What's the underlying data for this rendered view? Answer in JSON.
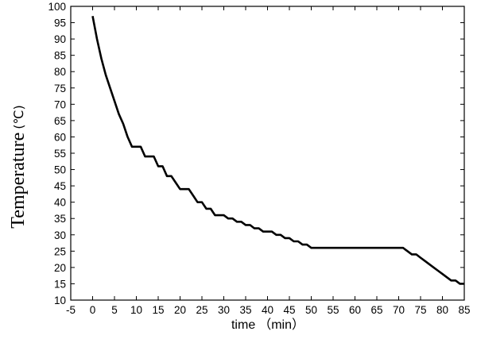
{
  "chart_data": {
    "type": "line",
    "title": "",
    "xlabel": "time",
    "xlabel_unit": "（min）",
    "ylabel": "Temperature",
    "ylabel_unit": "(℃)",
    "xlim": [
      -5,
      85
    ],
    "ylim": [
      10,
      100
    ],
    "xticks": [
      -5,
      0,
      5,
      10,
      15,
      20,
      25,
      30,
      35,
      40,
      45,
      50,
      55,
      60,
      65,
      70,
      75,
      80,
      85
    ],
    "yticks": [
      10,
      15,
      20,
      25,
      30,
      35,
      40,
      45,
      50,
      55,
      60,
      65,
      70,
      75,
      80,
      85,
      90,
      95,
      100
    ],
    "grid": false,
    "legend": "none",
    "series": [
      {
        "color": "#000000",
        "x": [
          0,
          1,
          2,
          3,
          4,
          5,
          6,
          7,
          8,
          9,
          10,
          11,
          12,
          13,
          14,
          15,
          16,
          17,
          18,
          19,
          20,
          21,
          22,
          23,
          24,
          25,
          26,
          27,
          28,
          29,
          30,
          31,
          32,
          33,
          34,
          35,
          36,
          37,
          38,
          39,
          40,
          41,
          42,
          43,
          44,
          45,
          46,
          47,
          48,
          49,
          50,
          55,
          60,
          65,
          70,
          71,
          72,
          73,
          74,
          75,
          76,
          77,
          78,
          79,
          80,
          81,
          82,
          83,
          84,
          85
        ],
        "y": [
          97,
          90,
          84,
          79,
          75,
          71,
          67,
          64,
          60,
          57,
          57,
          57,
          54,
          54,
          54,
          51,
          51,
          48,
          48,
          46,
          44,
          44,
          44,
          42,
          40,
          40,
          38,
          38,
          36,
          36,
          36,
          35,
          35,
          34,
          34,
          33,
          33,
          32,
          32,
          31,
          31,
          31,
          30,
          30,
          29,
          29,
          28,
          28,
          27,
          27,
          26,
          26,
          26,
          26,
          26,
          26,
          25,
          24,
          24,
          23,
          22,
          21,
          20,
          19,
          18,
          17,
          16,
          16,
          15,
          15
        ]
      }
    ]
  }
}
